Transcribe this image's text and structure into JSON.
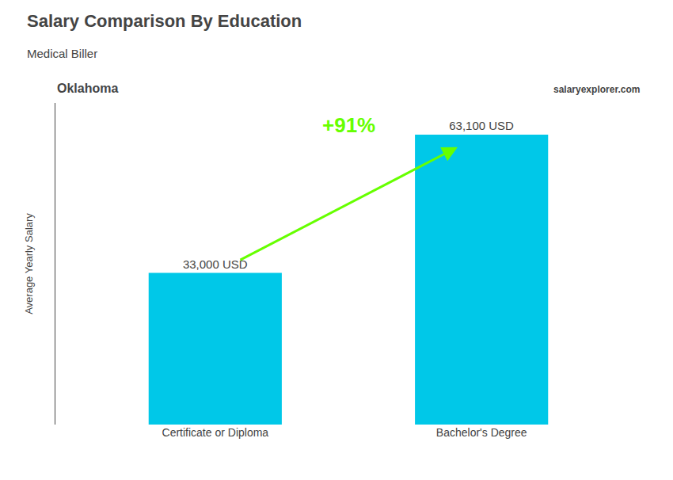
{
  "chart_data": {
    "type": "bar",
    "title": "Salary Comparison By Education",
    "subtitle": "Medical Biller",
    "categories": [
      "Certificate or Diploma",
      "Bachelor's Degree"
    ],
    "values": [
      33000,
      63100
    ],
    "value_labels": [
      "33,000 USD",
      "63,100 USD"
    ],
    "data_labels": true,
    "color": "#00c8e8",
    "ylabel": "Average Yearly Salary",
    "ylim": [
      0,
      70000
    ],
    "tick_labels": "x",
    "grid": false,
    "annotations": [
      {
        "text": "Oklahoma"
      },
      {
        "text": "+91%",
        "color": "#66ff00"
      },
      {
        "text": "salaryexplorer.com"
      }
    ]
  }
}
